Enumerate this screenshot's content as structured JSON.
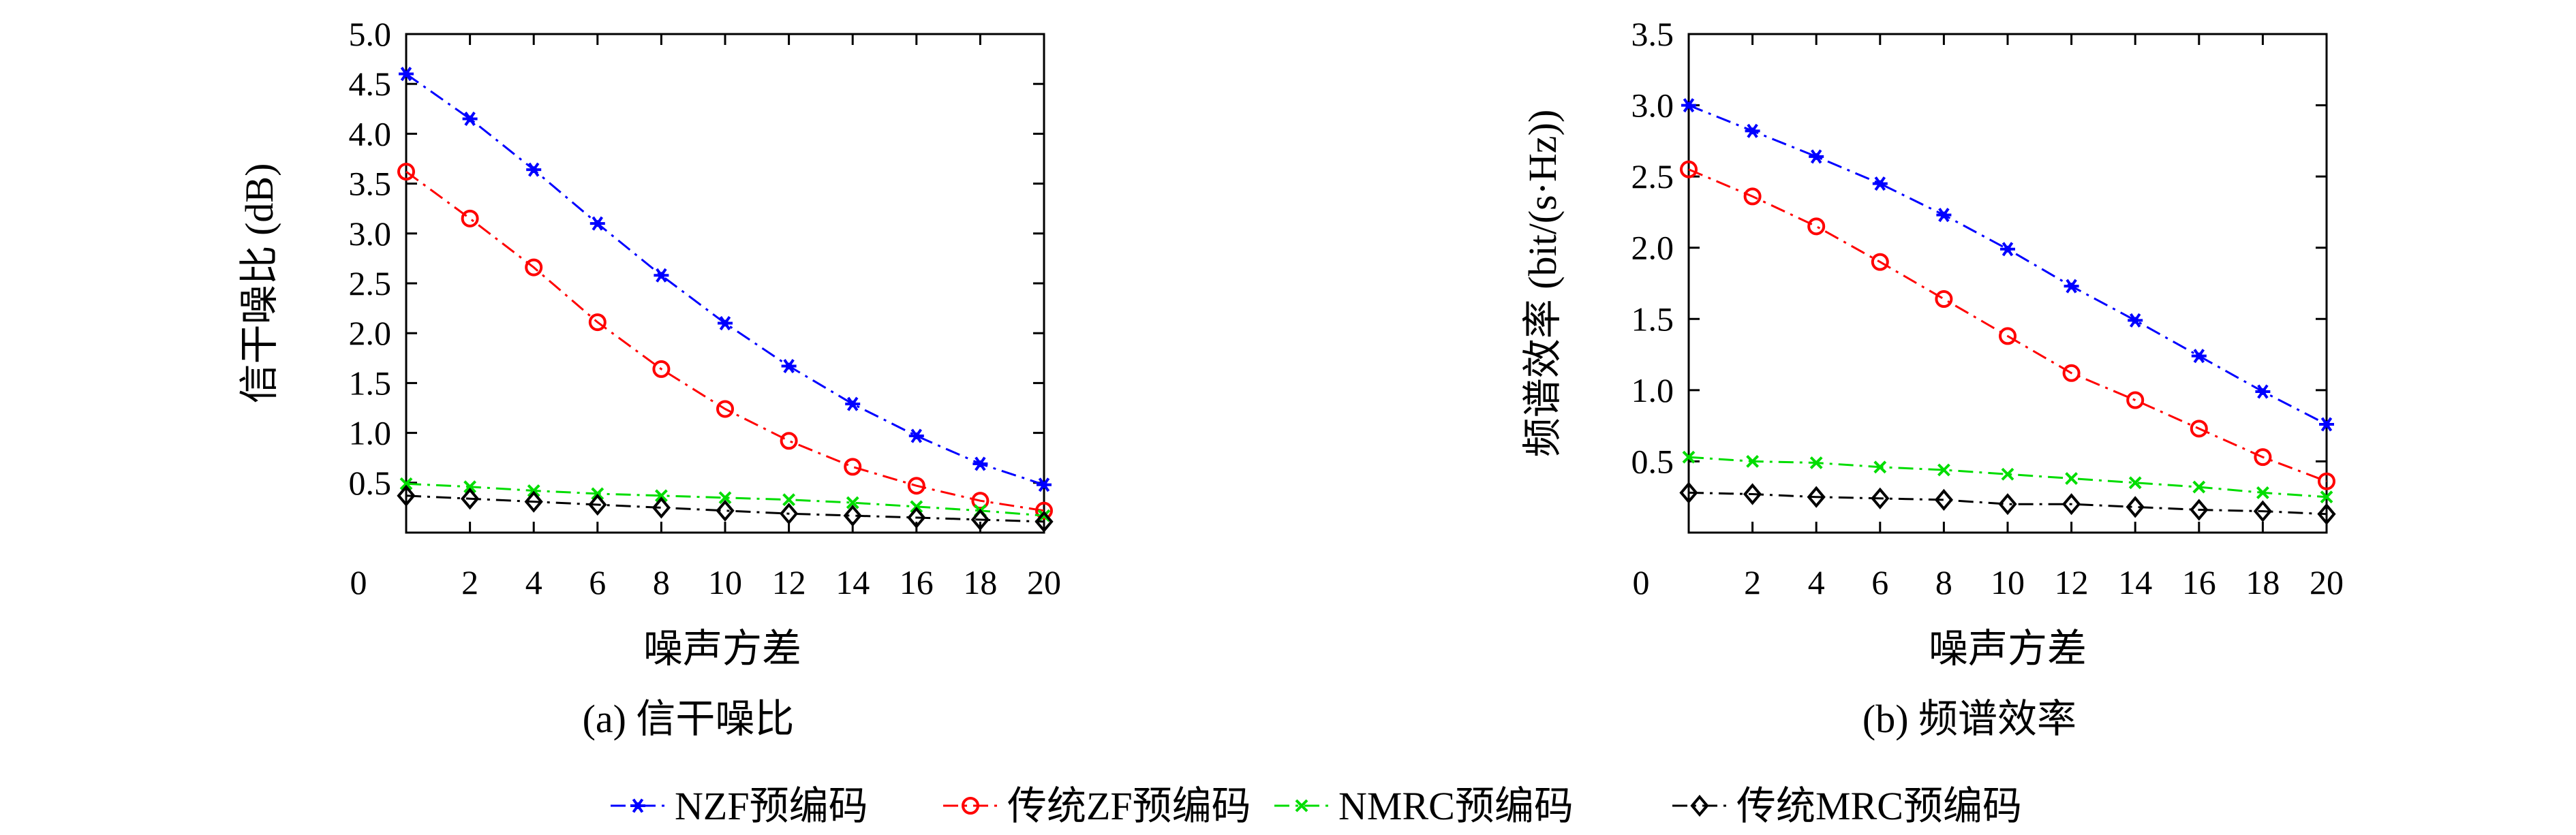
{
  "legend": [
    {
      "label": "NZF预编码",
      "color": "#0000ff",
      "marker": "asterisk",
      "dash": "dash-dot"
    },
    {
      "label": "传统ZF预编码",
      "color": "#ff0000",
      "marker": "circle",
      "dash": "dash-dot"
    },
    {
      "label": "NMRC预编码",
      "color": "#00dd00",
      "marker": "cross",
      "dash": "dash-dot"
    },
    {
      "label": "传统MRC预编码",
      "color": "#000000",
      "marker": "diamond",
      "dash": "dash-dot"
    }
  ],
  "chart_data": [
    {
      "type": "line",
      "caption": "(a) 信干噪比",
      "xlabel": "噪声方差",
      "ylabel": "信干噪比 (dB)",
      "xlim": [
        0,
        20
      ],
      "ylim": [
        0,
        5.0
      ],
      "x_origin_label": "0",
      "xticks": [
        "2",
        "4",
        "6",
        "8",
        "10",
        "12",
        "14",
        "16",
        "18",
        "20"
      ],
      "xtick_values": [
        2,
        4,
        6,
        8,
        10,
        12,
        14,
        16,
        18,
        20
      ],
      "yticks": [
        "0.5",
        "1.0",
        "1.5",
        "2.0",
        "2.5",
        "3.0",
        "3.5",
        "4.0",
        "4.5",
        "5.0"
      ],
      "ytick_values": [
        0.5,
        1.0,
        1.5,
        2.0,
        2.5,
        3.0,
        3.5,
        4.0,
        4.5,
        5.0
      ],
      "x": [
        0,
        2,
        4,
        6,
        8,
        10,
        12,
        14,
        16,
        18,
        20
      ],
      "series": [
        {
          "name": "NZF预编码",
          "values": [
            4.6,
            4.15,
            3.64,
            3.1,
            2.58,
            2.1,
            1.67,
            1.29,
            0.97,
            0.69,
            0.48
          ]
        },
        {
          "name": "传统ZF预编码",
          "values": [
            3.62,
            3.15,
            2.66,
            2.11,
            1.64,
            1.24,
            0.92,
            0.66,
            0.47,
            0.32,
            0.22
          ]
        },
        {
          "name": "NMRC预编码",
          "values": [
            0.49,
            0.46,
            0.42,
            0.39,
            0.37,
            0.35,
            0.33,
            0.3,
            0.26,
            0.22,
            0.17
          ]
        },
        {
          "name": "传统MRC预编码",
          "values": [
            0.37,
            0.34,
            0.31,
            0.28,
            0.25,
            0.22,
            0.19,
            0.17,
            0.15,
            0.13,
            0.11
          ]
        }
      ]
    },
    {
      "type": "line",
      "caption": "(b) 频谱效率",
      "xlabel": "噪声方差",
      "ylabel": "频谱效率 (bit/(s·Hz))",
      "xlim": [
        0,
        20
      ],
      "ylim": [
        0,
        3.5
      ],
      "x_origin_label": "0",
      "xticks": [
        "2",
        "4",
        "6",
        "8",
        "10",
        "12",
        "14",
        "16",
        "18",
        "20"
      ],
      "xtick_values": [
        2,
        4,
        6,
        8,
        10,
        12,
        14,
        16,
        18,
        20
      ],
      "yticks": [
        "0.5",
        "1.0",
        "1.5",
        "2.0",
        "2.5",
        "3.0",
        "3.5"
      ],
      "ytick_values": [
        0.5,
        1.0,
        1.5,
        2.0,
        2.5,
        3.0,
        3.5
      ],
      "x": [
        0,
        2,
        4,
        6,
        8,
        10,
        12,
        14,
        16,
        18,
        20
      ],
      "series": [
        {
          "name": "NZF预编码",
          "values": [
            3.0,
            2.82,
            2.64,
            2.45,
            2.23,
            1.99,
            1.73,
            1.49,
            1.24,
            0.99,
            0.76
          ]
        },
        {
          "name": "传统ZF预编码",
          "values": [
            2.55,
            2.36,
            2.15,
            1.9,
            1.64,
            1.38,
            1.12,
            0.93,
            0.73,
            0.53,
            0.36
          ]
        },
        {
          "name": "NMRC预编码",
          "values": [
            0.53,
            0.5,
            0.49,
            0.46,
            0.44,
            0.41,
            0.38,
            0.35,
            0.32,
            0.28,
            0.25
          ]
        },
        {
          "name": "传统MRC预编码",
          "values": [
            0.28,
            0.27,
            0.25,
            0.24,
            0.23,
            0.2,
            0.2,
            0.18,
            0.16,
            0.15,
            0.13
          ]
        }
      ]
    }
  ]
}
